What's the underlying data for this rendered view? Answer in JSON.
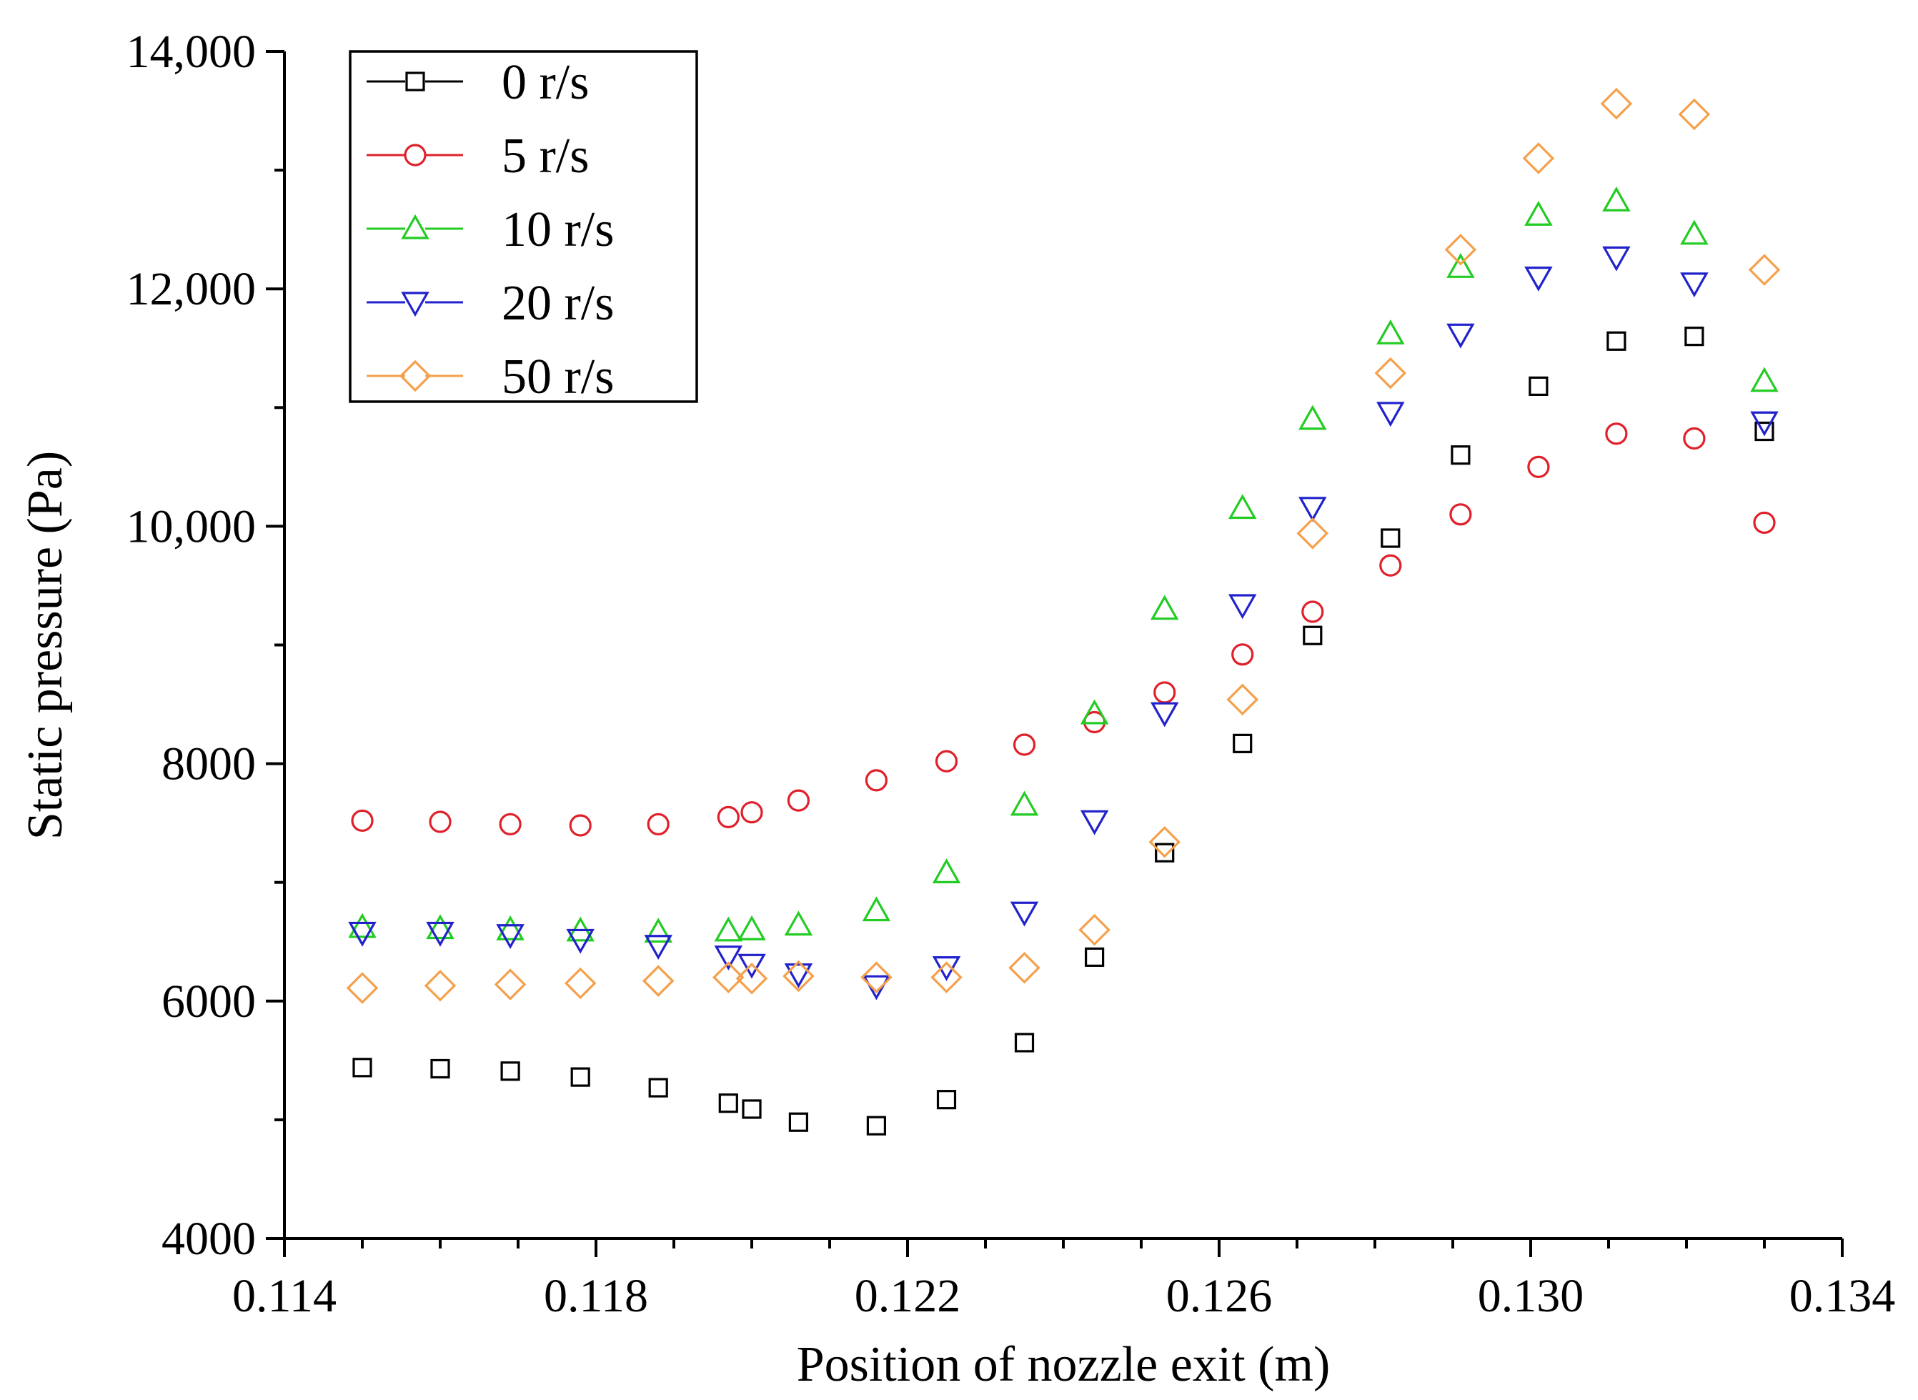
{
  "chart_data": {
    "type": "scatter",
    "title": "",
    "xlabel": "Position of nozzle exit (m)",
    "ylabel": "Static pressure (Pa)",
    "xlim": [
      0.114,
      0.134
    ],
    "ylim": [
      4000,
      14000
    ],
    "grid": false,
    "legend_position": "top-left",
    "x_ticks": [
      0.114,
      0.118,
      0.122,
      0.126,
      0.13,
      0.134
    ],
    "x_tick_labels": [
      "0.114",
      "0.118",
      "0.122",
      "0.126",
      "0.130",
      "0.134"
    ],
    "y_ticks": [
      4000,
      6000,
      8000,
      10000,
      12000,
      14000
    ],
    "y_tick_labels": [
      "4000",
      "6000",
      "8000",
      "10,000",
      "12,000",
      "14,000"
    ],
    "series": [
      {
        "name": "0 r/s",
        "color": "#000000",
        "marker": "square",
        "x": [
          0.115,
          0.116,
          0.1169,
          0.1178,
          0.1188,
          0.1197,
          0.12,
          0.1206,
          0.1216,
          0.1225,
          0.1235,
          0.1244,
          0.1253,
          0.1263,
          0.1272,
          0.1282,
          0.1291,
          0.1301,
          0.1311,
          0.1321,
          0.133
        ],
        "y": [
          5440,
          5430,
          5410,
          5360,
          5270,
          5140,
          5090,
          4980,
          4950,
          5170,
          5650,
          6370,
          7250,
          8170,
          9080,
          9900,
          10600,
          11180,
          11560,
          11600,
          10800
        ]
      },
      {
        "name": "5 r/s",
        "color": "#e0202a",
        "marker": "circle",
        "x": [
          0.115,
          0.116,
          0.1169,
          0.1178,
          0.1188,
          0.1197,
          0.12,
          0.1206,
          0.1216,
          0.1225,
          0.1235,
          0.1244,
          0.1253,
          0.1263,
          0.1272,
          0.1282,
          0.1291,
          0.1301,
          0.1311,
          0.1321,
          0.133
        ],
        "y": [
          7520,
          7510,
          7490,
          7480,
          7490,
          7550,
          7590,
          7690,
          7860,
          8020,
          8160,
          8350,
          8600,
          8920,
          9280,
          9670,
          10100,
          10500,
          10780,
          10740,
          10030
        ]
      },
      {
        "name": "10 r/s",
        "color": "#22cc22",
        "marker": "triangle-up",
        "x": [
          0.115,
          0.116,
          0.1169,
          0.1178,
          0.1188,
          0.1197,
          0.12,
          0.1206,
          0.1216,
          0.1225,
          0.1235,
          0.1244,
          0.1253,
          0.1263,
          0.1272,
          0.1282,
          0.1291,
          0.1301,
          0.1311,
          0.1321,
          0.133
        ],
        "y": [
          6620,
          6610,
          6600,
          6590,
          6580,
          6590,
          6600,
          6640,
          6760,
          7080,
          7650,
          8420,
          9300,
          10150,
          10900,
          11620,
          12180,
          12620,
          12740,
          12460,
          11220
        ]
      },
      {
        "name": "20 r/s",
        "color": "#2222cc",
        "marker": "triangle-down",
        "x": [
          0.115,
          0.116,
          0.1169,
          0.1178,
          0.1188,
          0.1197,
          0.12,
          0.1206,
          0.1216,
          0.1225,
          0.1235,
          0.1244,
          0.1253,
          0.1263,
          0.1272,
          0.1282,
          0.1291,
          0.1301,
          0.1311,
          0.1321,
          0.133
        ],
        "y": [
          6580,
          6580,
          6560,
          6520,
          6470,
          6380,
          6310,
          6230,
          6130,
          6290,
          6750,
          7520,
          8430,
          9340,
          10160,
          10960,
          11620,
          12100,
          12270,
          12050,
          10880
        ]
      },
      {
        "name": "50 r/s",
        "color": "#f5a04a",
        "marker": "diamond",
        "x": [
          0.115,
          0.116,
          0.1169,
          0.1178,
          0.1188,
          0.1197,
          0.12,
          0.1206,
          0.1216,
          0.1225,
          0.1235,
          0.1244,
          0.1253,
          0.1263,
          0.1272,
          0.1282,
          0.1291,
          0.1301,
          0.1311,
          0.1321,
          0.133
        ],
        "y": [
          6110,
          6130,
          6140,
          6150,
          6170,
          6200,
          6190,
          6210,
          6200,
          6200,
          6280,
          6600,
          7340,
          8540,
          9940,
          11290,
          12330,
          13100,
          13560,
          13470,
          12160
        ]
      }
    ]
  }
}
